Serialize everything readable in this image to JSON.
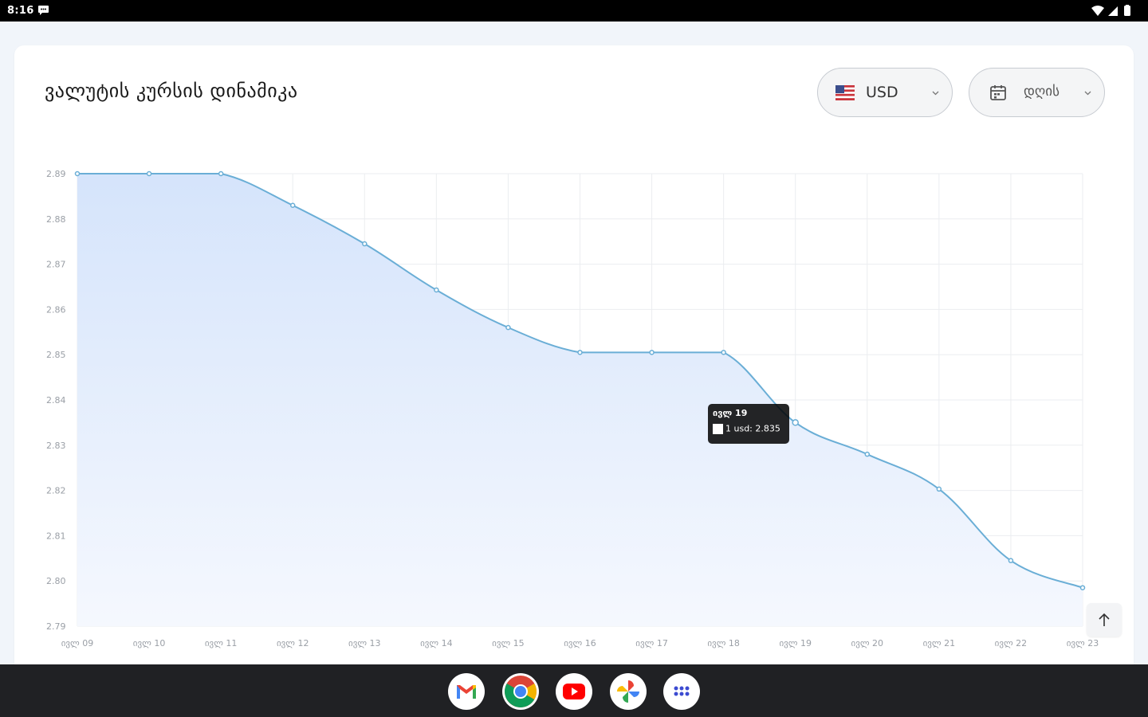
{
  "status_bar": {
    "time": "8:16"
  },
  "page": {
    "title": "ვალუტის კურსის დინამიკა"
  },
  "currency_select": {
    "value": "USD"
  },
  "period_select": {
    "value": "დღის"
  },
  "tooltip": {
    "title": "ივლ 19",
    "body": "1 usd: 2.835"
  },
  "colors": {
    "line": "#6aaed6",
    "fill_top": "#d5e4fb",
    "fill_bottom": "#f5f8fe",
    "grid": "#ebedf0"
  },
  "chart_data": {
    "type": "area",
    "categories": [
      "ივლ 09",
      "ივლ 10",
      "ივლ 11",
      "ივლ 12",
      "ივლ 13",
      "ივლ 14",
      "ივლ 15",
      "ივლ 16",
      "ივლ 17",
      "ივლ 18",
      "ივლ 19",
      "ივლ 20",
      "ივლ 21",
      "ივლ 22",
      "ივლ 23"
    ],
    "values": [
      2.89,
      2.89,
      2.89,
      2.883,
      2.8745,
      2.8643,
      2.856,
      2.8505,
      2.8505,
      2.8505,
      2.835,
      2.828,
      2.8203,
      2.8045,
      2.7985
    ],
    "ylim": [
      2.79,
      2.89
    ],
    "y_ticks": [
      "2.79",
      "2.80",
      "2.81",
      "2.82",
      "2.83",
      "2.84",
      "2.85",
      "2.86",
      "2.87",
      "2.88",
      "2.89"
    ],
    "grid": true,
    "tooltip_index": 10
  },
  "dock": {
    "apps": [
      "gmail-icon",
      "chrome-icon",
      "youtube-icon",
      "photos-icon",
      "app-drawer-icon"
    ]
  }
}
